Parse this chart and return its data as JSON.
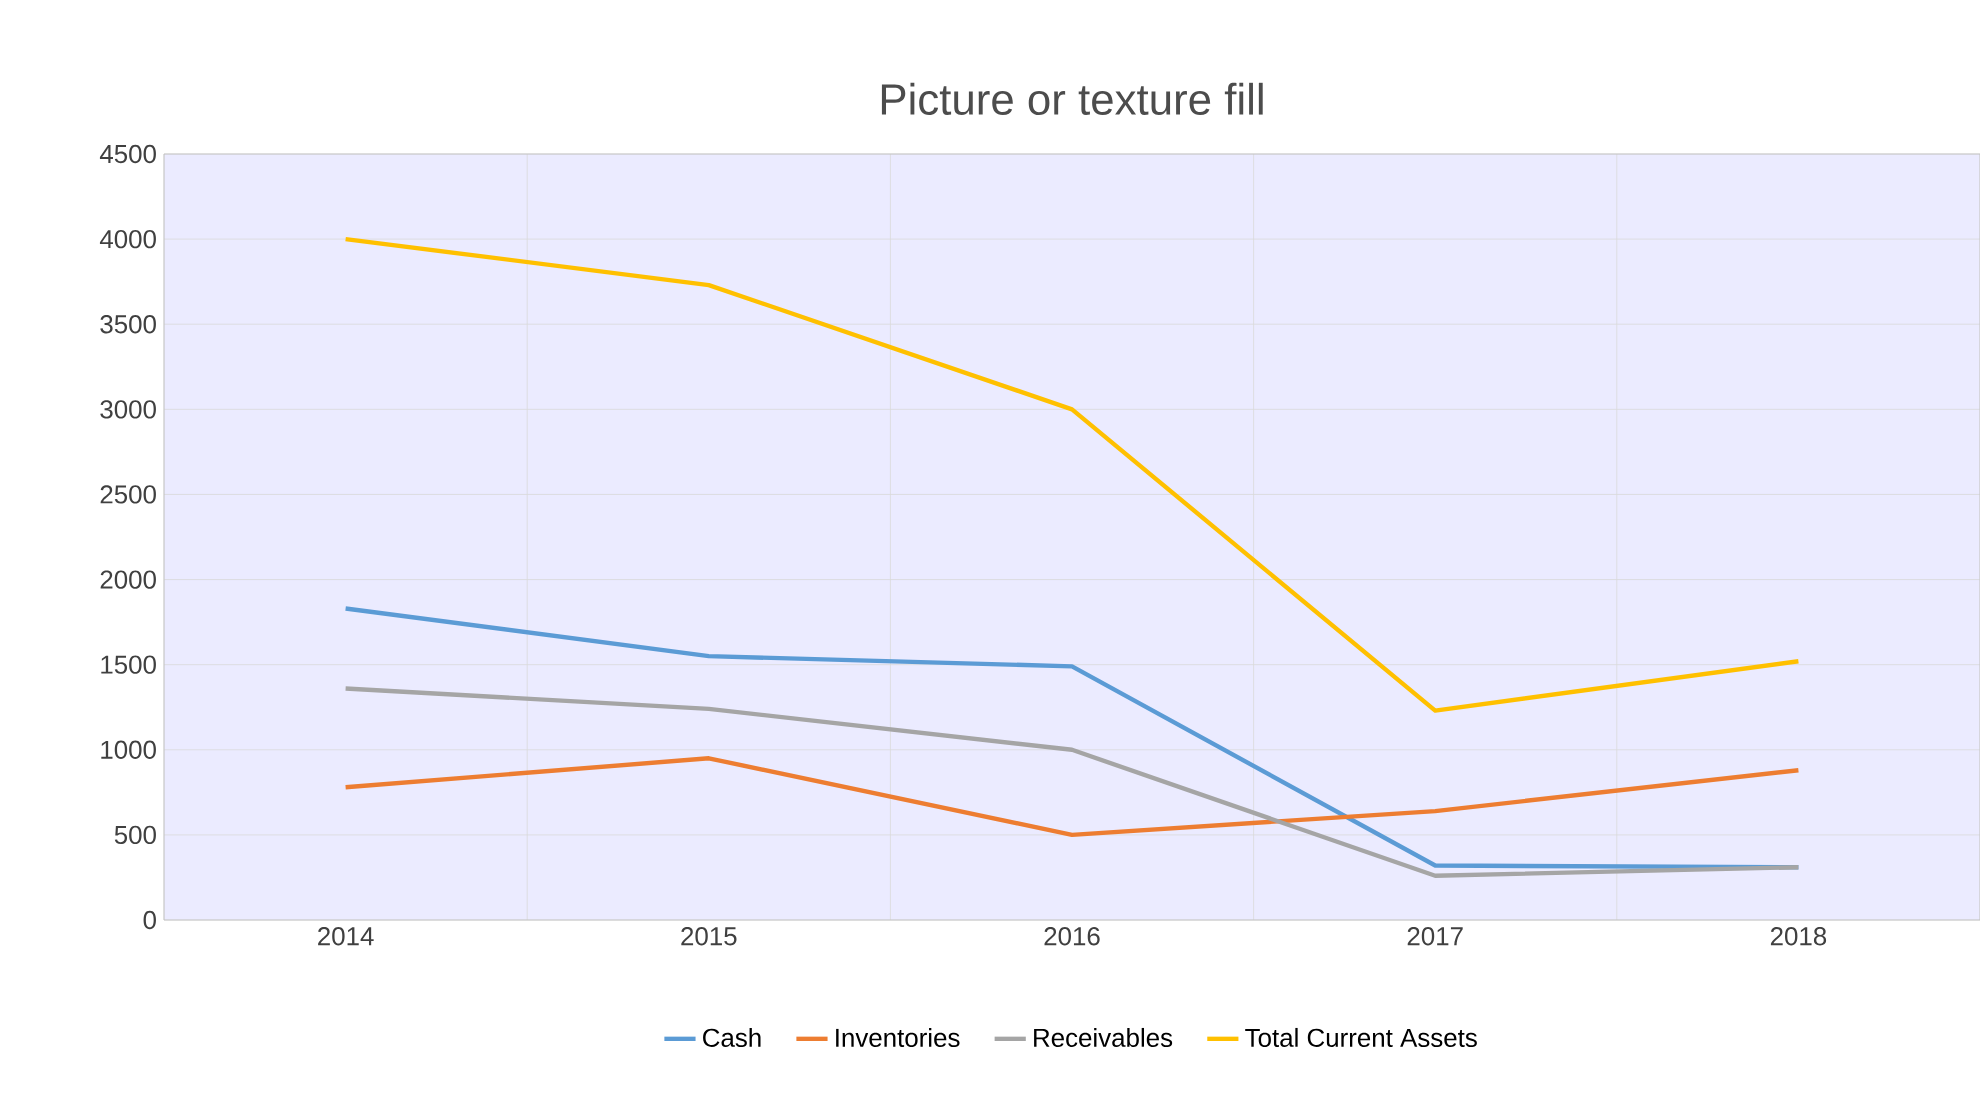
{
  "chart_data": {
    "type": "line",
    "title": "Picture or texture fill",
    "categories": [
      "2014",
      "2015",
      "2016",
      "2017",
      "2018"
    ],
    "series": [
      {
        "name": "Cash",
        "color": "#5b9bd5",
        "values": [
          1830,
          1550,
          1490,
          320,
          310
        ]
      },
      {
        "name": "Inventories",
        "color": "#ed7d31",
        "values": [
          780,
          950,
          500,
          640,
          880
        ]
      },
      {
        "name": "Receivables",
        "color": "#a5a5a5",
        "values": [
          1360,
          1240,
          1000,
          260,
          310
        ]
      },
      {
        "name": "Total Current Assets",
        "color": "#ffc000",
        "values": [
          4000,
          3730,
          3000,
          1230,
          1520
        ]
      }
    ],
    "ylim": [
      0,
      4500
    ],
    "yticks": [
      0,
      500,
      1000,
      1500,
      2000,
      2500,
      3000,
      3500,
      4000,
      4500
    ],
    "grid": true,
    "legend": "bottom",
    "marker": "none",
    "line_style": "solid"
  }
}
